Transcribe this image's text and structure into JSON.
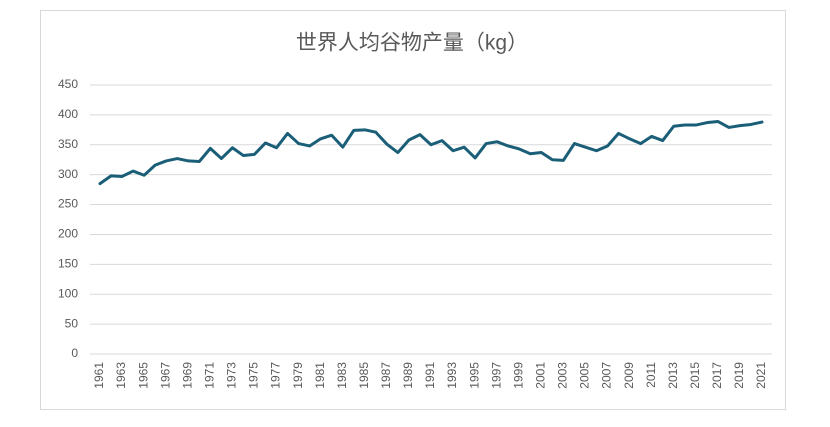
{
  "chart_data": {
    "type": "line",
    "title": "世界人均谷物产量（kg）",
    "categories": [
      "1961",
      null,
      "1963",
      null,
      "1965",
      null,
      "1967",
      null,
      "1969",
      null,
      "1971",
      null,
      "1973",
      null,
      "1975",
      null,
      "1977",
      null,
      "1979",
      null,
      "1981",
      null,
      "1983",
      null,
      "1985",
      null,
      "1987",
      null,
      "1989",
      null,
      "1991",
      null,
      "1993",
      null,
      "1995",
      null,
      "1997",
      null,
      "1999",
      null,
      "2001",
      null,
      "2003",
      null,
      "2005",
      null,
      "2007",
      null,
      "2009",
      null,
      "2011",
      null,
      "2013",
      null,
      "2015",
      null,
      "2017",
      null,
      "2019",
      null,
      "2021"
    ],
    "values": [
      285,
      298,
      297,
      306,
      299,
      316,
      323,
      327,
      323,
      322,
      344,
      327,
      345,
      332,
      334,
      353,
      345,
      369,
      352,
      348,
      360,
      366,
      346,
      374,
      375,
      371,
      351,
      337,
      358,
      367,
      350,
      357,
      340,
      346,
      328,
      352,
      355,
      348,
      343,
      335,
      337,
      325,
      324,
      352,
      346,
      340,
      348,
      369,
      360,
      352,
      364,
      357,
      381,
      383,
      383,
      387,
      389,
      379,
      382,
      384,
      388
    ],
    "color": "#1b5e78",
    "ylim": [
      0,
      450
    ],
    "yticks": [
      0,
      50,
      100,
      150,
      200,
      250,
      300,
      350,
      400,
      450
    ],
    "grid": true
  }
}
